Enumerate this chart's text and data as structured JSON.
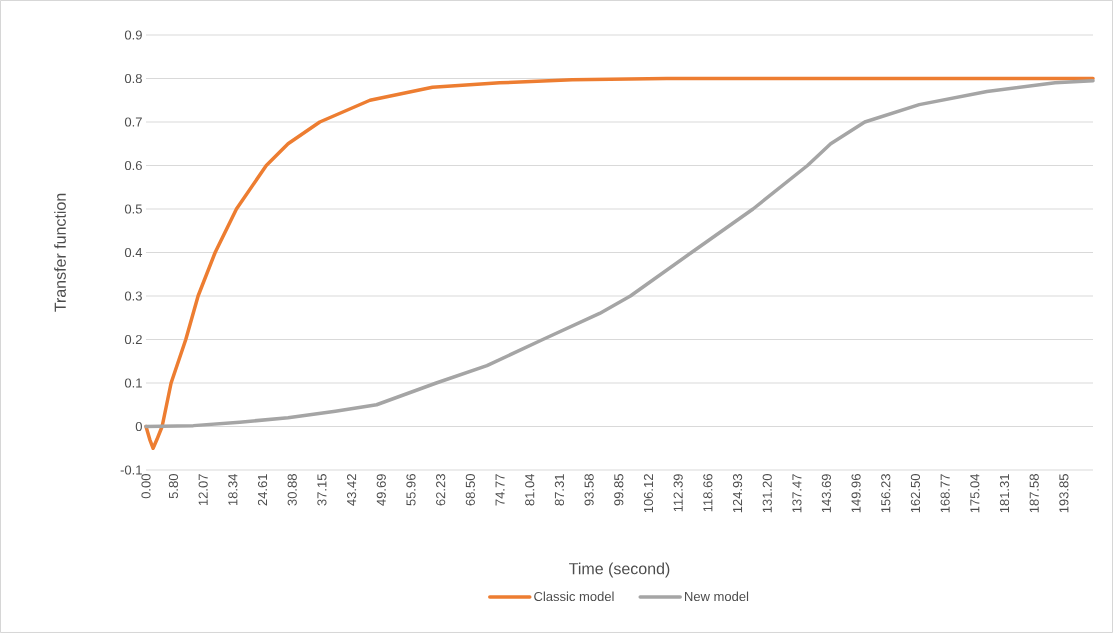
{
  "chart_data": {
    "type": "line",
    "xlabel": "Time (second)",
    "ylabel": "Transfer function",
    "xlim": [
      0,
      200
    ],
    "ylim": [
      -0.1,
      0.9
    ],
    "xticks": [
      {
        "value": 0,
        "label": "0.00"
      },
      {
        "value": 5.8,
        "label": "5.80"
      },
      {
        "value": 12.07,
        "label": "12.07"
      },
      {
        "value": 18.34,
        "label": "18.34"
      },
      {
        "value": 24.61,
        "label": "24.61"
      },
      {
        "value": 30.88,
        "label": "30.88"
      },
      {
        "value": 37.15,
        "label": "37.15"
      },
      {
        "value": 43.42,
        "label": "43.42"
      },
      {
        "value": 49.69,
        "label": "49.69"
      },
      {
        "value": 55.96,
        "label": "55.96"
      },
      {
        "value": 62.23,
        "label": "62.23"
      },
      {
        "value": 68.5,
        "label": "68.50"
      },
      {
        "value": 74.77,
        "label": "74.77"
      },
      {
        "value": 81.04,
        "label": "81.04"
      },
      {
        "value": 87.31,
        "label": "87.31"
      },
      {
        "value": 93.58,
        "label": "93.58"
      },
      {
        "value": 99.85,
        "label": "99.85"
      },
      {
        "value": 106.12,
        "label": "106.12"
      },
      {
        "value": 112.39,
        "label": "112.39"
      },
      {
        "value": 118.66,
        "label": "118.66"
      },
      {
        "value": 124.93,
        "label": "124.93"
      },
      {
        "value": 131.2,
        "label": "131.20"
      },
      {
        "value": 137.47,
        "label": "137.47"
      },
      {
        "value": 143.69,
        "label": "143.69"
      },
      {
        "value": 149.96,
        "label": "149.96"
      },
      {
        "value": 156.23,
        "label": "156.23"
      },
      {
        "value": 162.5,
        "label": "162.50"
      },
      {
        "value": 168.77,
        "label": "168.77"
      },
      {
        "value": 175.04,
        "label": "175.04"
      },
      {
        "value": 181.31,
        "label": "181.31"
      },
      {
        "value": 187.58,
        "label": "187.58"
      },
      {
        "value": 193.85,
        "label": "193.85"
      }
    ],
    "yticks": [
      -0.1,
      0,
      0.1,
      0.2,
      0.3,
      0.4,
      0.5,
      0.6,
      0.7,
      0.8,
      0.9
    ],
    "grid": "y",
    "legend": "bottom",
    "series": [
      {
        "name": "Classic model",
        "color": "#ed7d31",
        "x": [
          0,
          0.8,
          1.5,
          2.3,
          3.4,
          5.3,
          8.4,
          11.0,
          14.6,
          19.1,
          25.4,
          30,
          36.7,
          47.3,
          60.5,
          74.7,
          90,
          110,
          150,
          200
        ],
        "values": [
          0,
          -0.03,
          -0.05,
          -0.03,
          0,
          0.1,
          0.2,
          0.3,
          0.4,
          0.5,
          0.6,
          0.65,
          0.7,
          0.75,
          0.78,
          0.79,
          0.797,
          0.8,
          0.8,
          0.8
        ]
      },
      {
        "name": "New model",
        "color": "#a5a5a5",
        "x": [
          0,
          10,
          19.8,
          30,
          40,
          48.7,
          61.3,
          72,
          83.8,
          95.8,
          102.3,
          115.2,
          128.2,
          139.7,
          144.6,
          151.8,
          163.3,
          177.6,
          192,
          200
        ],
        "values": [
          0,
          0.002,
          0.01,
          0.02,
          0.035,
          0.05,
          0.1,
          0.14,
          0.2,
          0.26,
          0.3,
          0.4,
          0.5,
          0.6,
          0.65,
          0.7,
          0.74,
          0.77,
          0.79,
          0.795
        ]
      }
    ]
  }
}
